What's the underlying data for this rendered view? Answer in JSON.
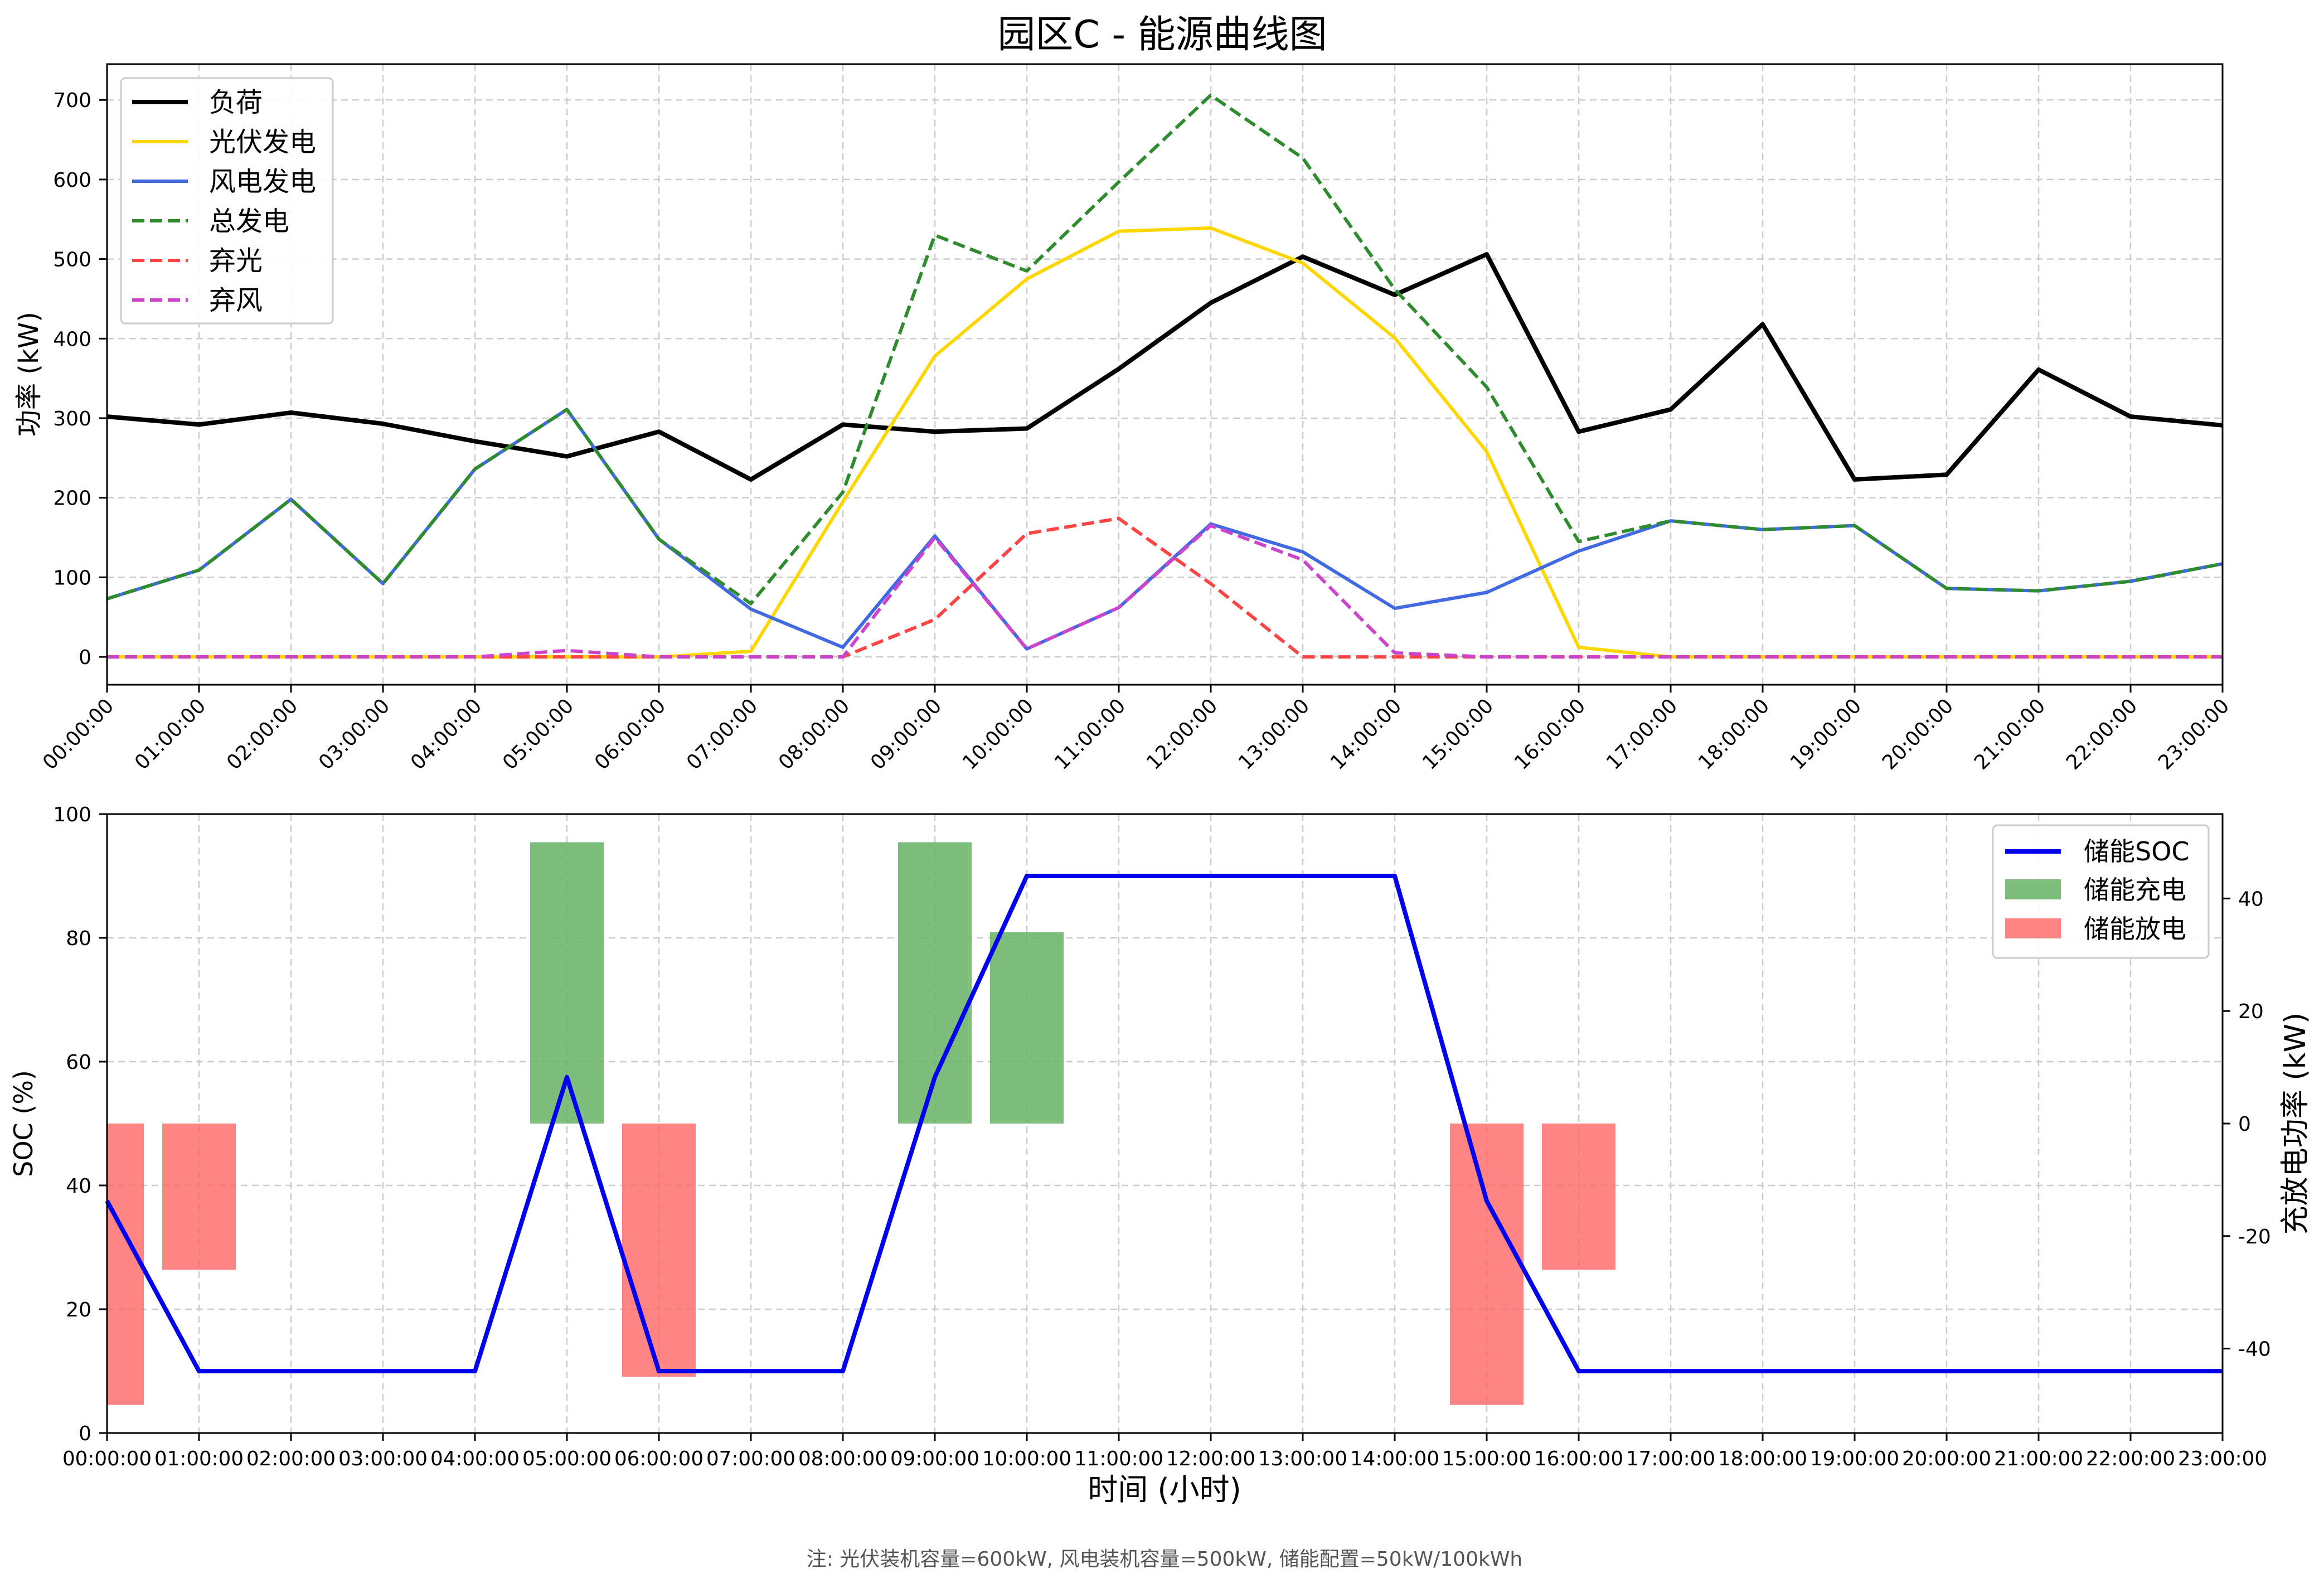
{
  "figure": {
    "title": "园区C - 能源曲线图",
    "footnote": "注: 光伏装机容量=600kW, 风电装机容量=500kW, 储能配置=50kW/100kWh"
  },
  "chart_data": [
    {
      "type": "line",
      "ylabel": "功率 (kW)",
      "xlabel": "",
      "ylim": [
        -35,
        745
      ],
      "yticks": [
        0,
        100,
        200,
        300,
        400,
        500,
        600,
        700
      ],
      "grid": true,
      "legend_position": "top-left",
      "x": [
        "00:00:00",
        "01:00:00",
        "02:00:00",
        "03:00:00",
        "04:00:00",
        "05:00:00",
        "06:00:00",
        "07:00:00",
        "08:00:00",
        "09:00:00",
        "10:00:00",
        "11:00:00",
        "12:00:00",
        "13:00:00",
        "14:00:00",
        "15:00:00",
        "16:00:00",
        "17:00:00",
        "18:00:00",
        "19:00:00",
        "20:00:00",
        "21:00:00",
        "22:00:00",
        "23:00:00"
      ],
      "series": [
        {
          "name": "负荷",
          "color": "#000000",
          "style": "solid",
          "width": 8,
          "values": [
            302,
            292,
            307,
            293,
            271,
            252,
            283,
            223,
            292,
            283,
            287,
            362,
            445,
            503,
            455,
            506,
            283,
            311,
            418,
            223,
            229,
            361,
            302,
            291
          ]
        },
        {
          "name": "光伏发电",
          "color": "#FFD700",
          "style": "solid",
          "width": 6,
          "values": [
            0,
            0,
            0,
            0,
            0,
            0,
            0,
            7,
            195,
            378,
            475,
            535,
            539,
            495,
            401,
            258,
            12,
            0,
            0,
            0,
            0,
            0,
            0,
            0
          ]
        },
        {
          "name": "风电发电",
          "color": "#4169E1",
          "style": "solid",
          "width": 6,
          "values": [
            73,
            109,
            198,
            92,
            236,
            311,
            148,
            60,
            12,
            152,
            10,
            62,
            167,
            132,
            61,
            81,
            133,
            171,
            160,
            165,
            86,
            83,
            95,
            117
          ]
        },
        {
          "name": "总发电",
          "color": "#2E8B2E",
          "style": "dashed",
          "width": 6,
          "values": [
            73,
            109,
            198,
            92,
            236,
            311,
            148,
            67,
            207,
            530,
            485,
            597,
            706,
            627,
            462,
            339,
            145,
            171,
            160,
            165,
            86,
            83,
            95,
            117
          ]
        },
        {
          "name": "弃光",
          "color": "#FF4444",
          "style": "dashed",
          "width": 6,
          "values": [
            0,
            0,
            0,
            0,
            0,
            0,
            0,
            0,
            0,
            47,
            155,
            174,
            92,
            0,
            0,
            0,
            0,
            0,
            0,
            0,
            0,
            0,
            0,
            0
          ]
        },
        {
          "name": "弃风",
          "color": "#CC44CC",
          "style": "dashed",
          "width": 6,
          "values": [
            0,
            0,
            0,
            0,
            0,
            8,
            0,
            0,
            0,
            150,
            10,
            62,
            165,
            122,
            5,
            0,
            0,
            0,
            0,
            0,
            0,
            0,
            0,
            0
          ]
        }
      ]
    },
    {
      "type": "bar",
      "xlabel": "时间 (小时)",
      "ylabel": "SOC (%)",
      "ylabel_right": "充放电功率 (kW)",
      "ylim": [
        0,
        100
      ],
      "yticks": [
        0,
        20,
        40,
        60,
        80,
        100
      ],
      "ylim_right": [
        -55,
        55
      ],
      "yticks_right": [
        -40,
        -20,
        0,
        20,
        40
      ],
      "grid": true,
      "legend_position": "top-right",
      "x": [
        "00:00:00",
        "01:00:00",
        "02:00:00",
        "03:00:00",
        "04:00:00",
        "05:00:00",
        "06:00:00",
        "07:00:00",
        "08:00:00",
        "09:00:00",
        "10:00:00",
        "11:00:00",
        "12:00:00",
        "13:00:00",
        "14:00:00",
        "15:00:00",
        "16:00:00",
        "17:00:00",
        "18:00:00",
        "19:00:00",
        "20:00:00",
        "21:00:00",
        "22:00:00",
        "23:00:00"
      ],
      "soc": {
        "name": "储能SOC",
        "color": "#0000EE",
        "values": [
          37.5,
          10,
          10,
          10,
          10,
          57.5,
          10,
          10,
          10,
          57.5,
          90,
          90,
          90,
          90,
          90,
          37.5,
          10,
          10,
          10,
          10,
          10,
          10,
          10,
          10
        ]
      },
      "charge": {
        "name": "储能充电",
        "color": "#66B366",
        "bars": [
          {
            "start": 4.6,
            "end": 5.4,
            "value": 50
          },
          {
            "start": 8.6,
            "end": 9.4,
            "value": 50
          },
          {
            "start": 9.6,
            "end": 10.4,
            "value": 34
          }
        ]
      },
      "discharge": {
        "name": "储能放电",
        "color": "#FF6666",
        "bars": [
          {
            "start": 0.0,
            "end": 0.4,
            "value": -50
          },
          {
            "start": 0.6,
            "end": 1.4,
            "value": -26
          },
          {
            "start": 5.6,
            "end": 6.4,
            "value": -45
          },
          {
            "start": 14.6,
            "end": 15.4,
            "value": -50
          },
          {
            "start": 15.6,
            "end": 16.4,
            "value": -26
          }
        ]
      }
    }
  ]
}
